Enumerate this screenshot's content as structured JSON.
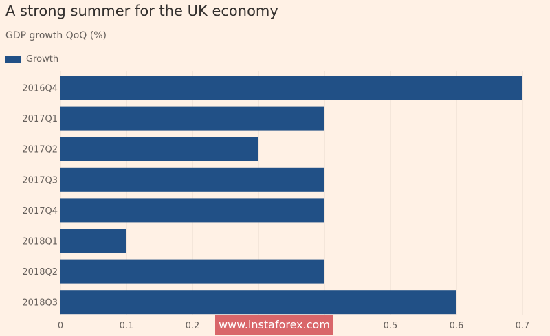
{
  "title": "A strong summer for the UK economy",
  "subtitle": "GDP growth QoQ (%)",
  "legend": {
    "label": "Growth",
    "color": "#215086"
  },
  "watermark": "www.instaforex.com",
  "chart_data": {
    "type": "bar",
    "orientation": "horizontal",
    "title": "A strong summer for the UK economy",
    "subtitle": "GDP growth QoQ (%)",
    "xlabel": "",
    "ylabel": "",
    "categories": [
      "2016Q4",
      "2017Q1",
      "2017Q2",
      "2017Q3",
      "2017Q4",
      "2018Q1",
      "2018Q2",
      "2018Q3"
    ],
    "series": [
      {
        "name": "Growth",
        "values": [
          0.7,
          0.4,
          0.3,
          0.4,
          0.4,
          0.1,
          0.4,
          0.6
        ],
        "color": "#215086"
      }
    ],
    "xlim": [
      0,
      0.7
    ],
    "xticks": [
      "0",
      "0.1",
      "0.2",
      "0.3",
      "0.4",
      "0.5",
      "0.6",
      "0.7"
    ],
    "grid": "vertical",
    "legend_position": "top-left"
  }
}
